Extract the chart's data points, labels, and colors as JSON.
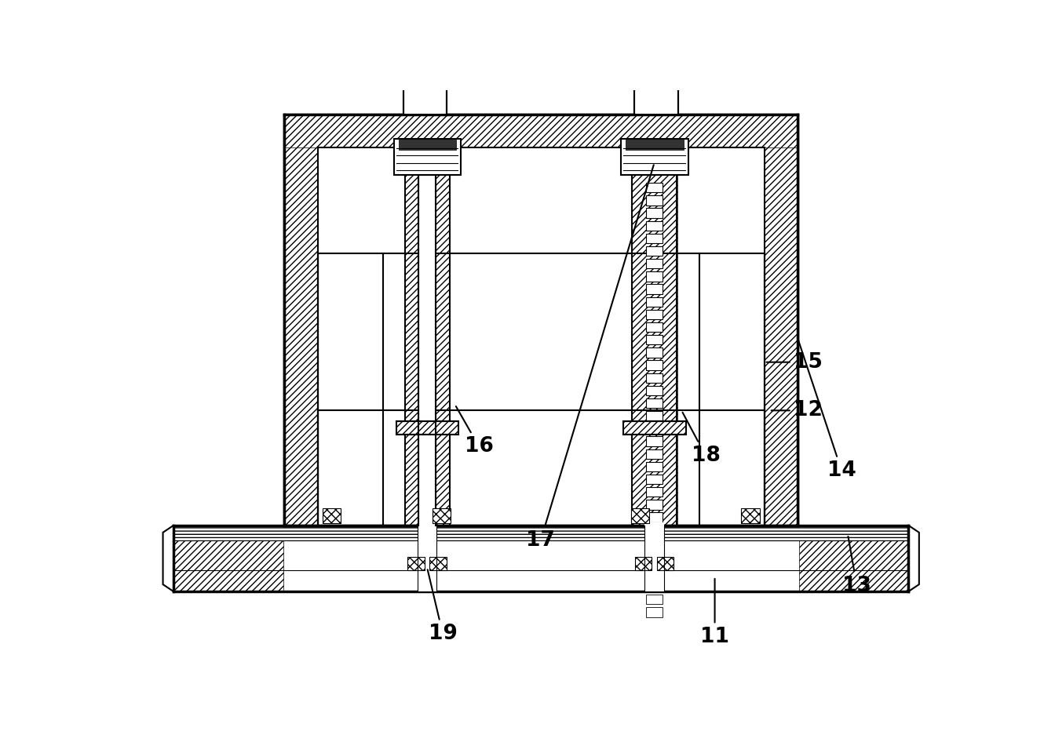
{
  "bg": "#ffffff",
  "k": "#000000",
  "lw1": 1.5,
  "lw2": 2.5,
  "lw3": 0.8,
  "fs": 19
}
